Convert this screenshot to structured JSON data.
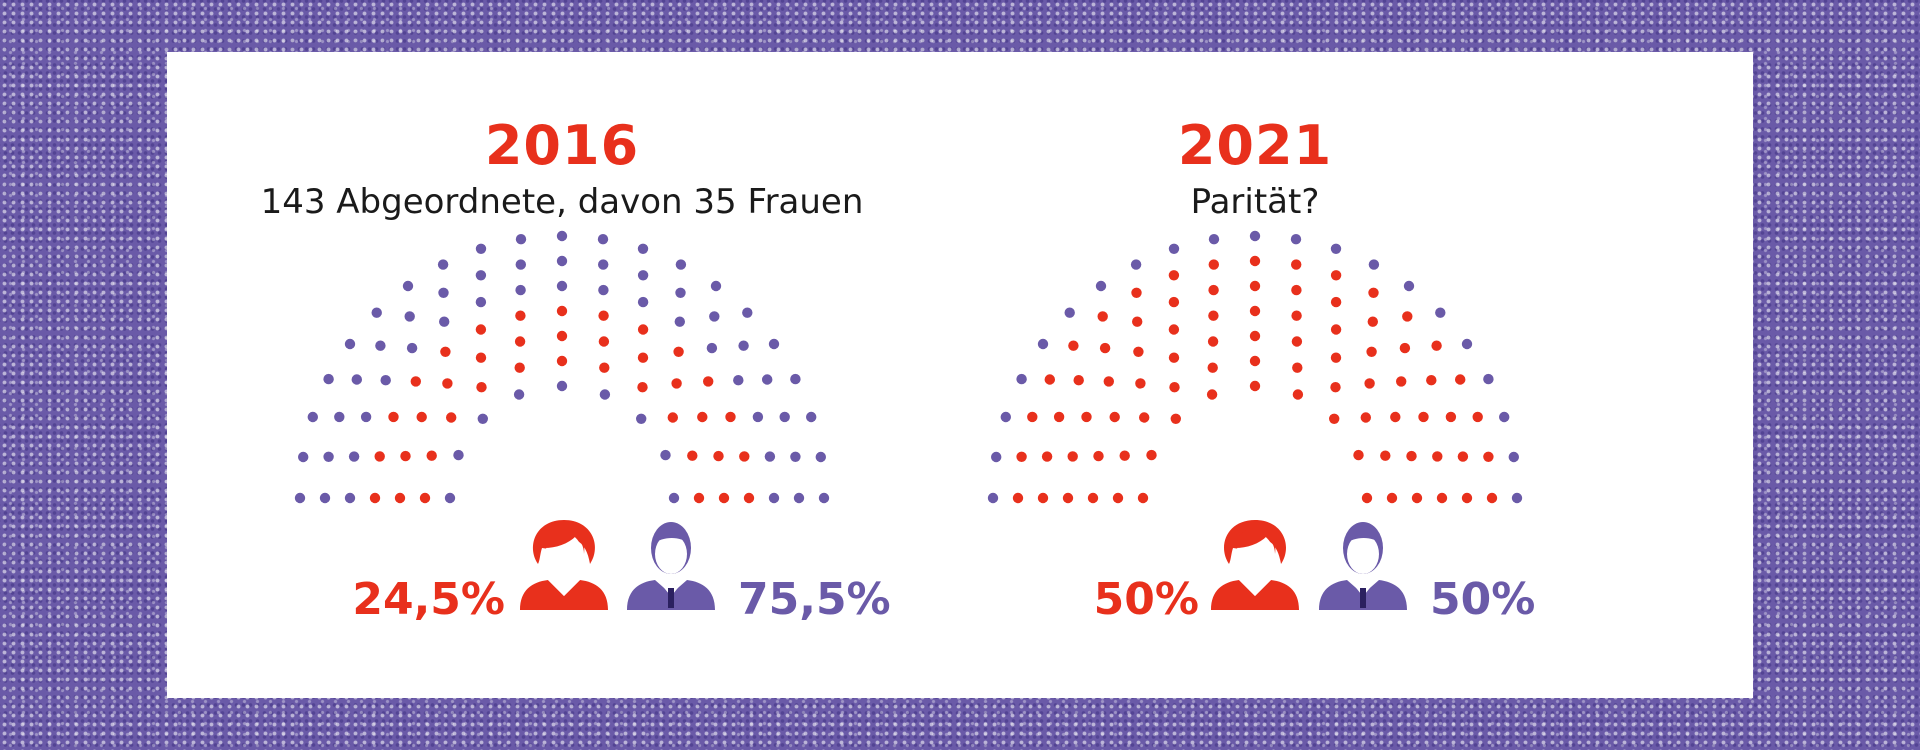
{
  "colors": {
    "women": "#e8301c",
    "men": "#6a5aa8",
    "frame": "#6a5aa8",
    "panel": "#ffffff",
    "text": "#1a1a1a"
  },
  "chart_data": [
    {
      "type": "hemicycle",
      "title": "2016",
      "subtitle": "143 Abgeordnete, davon 35 Frauen",
      "total_seats": 143,
      "series": [
        {
          "name": "Frauen",
          "seats": 35,
          "percent_label": "24,5%",
          "icon": "woman-icon"
        },
        {
          "name": "Männer",
          "seats": 108,
          "percent_label": "75,5%",
          "icon": "man-icon"
        }
      ]
    },
    {
      "type": "hemicycle",
      "title": "2021",
      "subtitle": "Parität?",
      "total_seats": 143,
      "series": [
        {
          "name": "Frauen",
          "percent_label": "50%",
          "icon": "woman-icon"
        },
        {
          "name": "Männer",
          "percent_label": "50%",
          "icon": "man-icon"
        }
      ]
    }
  ]
}
